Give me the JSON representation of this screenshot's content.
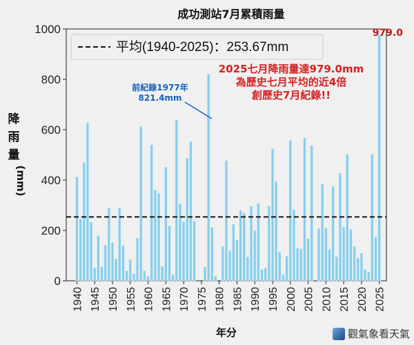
{
  "chart_data": {
    "type": "bar",
    "title": "成功測站7月累積雨量",
    "xlabel": "年分",
    "ylabel": "降雨量(mm)",
    "ylim": [
      0,
      1000
    ],
    "xlim": [
      1937,
      2027
    ],
    "yticks": [
      0,
      200,
      400,
      600,
      800,
      1000
    ],
    "xticks": [
      1940,
      1945,
      1950,
      1955,
      1960,
      1965,
      1970,
      1975,
      1980,
      1985,
      1990,
      1995,
      2000,
      2005,
      2010,
      2015,
      2020,
      2025
    ],
    "bar_color": "#87ceeb",
    "highlight_color": "#a8d8ef",
    "mean_value": 253.67,
    "legend": {
      "text": "平均(1940-2025)：253.67mm",
      "placement": "top-left"
    },
    "annotations": {
      "record_2025_label": "979.0",
      "old_record_line1": "前紀錄1977年",
      "old_record_line2": "821.4mm",
      "headline_line1": "2025七月降雨量達979.0mm",
      "headline_line2": "為歷史七月平均的近4倍",
      "headline_line3": "創歷史7月紀錄!!"
    },
    "x": [
      1940,
      1941,
      1942,
      1943,
      1944,
      1945,
      1946,
      1947,
      1948,
      1949,
      1950,
      1951,
      1952,
      1953,
      1954,
      1955,
      1956,
      1957,
      1958,
      1959,
      1960,
      1961,
      1962,
      1963,
      1964,
      1965,
      1966,
      1967,
      1968,
      1969,
      1970,
      1971,
      1972,
      1973,
      1974,
      1975,
      1976,
      1977,
      1978,
      1979,
      1980,
      1981,
      1982,
      1983,
      1984,
      1985,
      1986,
      1987,
      1988,
      1989,
      1990,
      1991,
      1992,
      1993,
      1994,
      1995,
      1996,
      1997,
      1998,
      1999,
      2000,
      2001,
      2002,
      2003,
      2004,
      2005,
      2006,
      2007,
      2008,
      2009,
      2010,
      2011,
      2012,
      2013,
      2014,
      2015,
      2016,
      2017,
      2018,
      2019,
      2020,
      2021,
      2022,
      2023,
      2024,
      2025
    ],
    "values": [
      413,
      247,
      470,
      627,
      233,
      52,
      180,
      55,
      142,
      290,
      152,
      88,
      290,
      140,
      40,
      85,
      28,
      170,
      613,
      40,
      18,
      540,
      360,
      348,
      58,
      452,
      218,
      25,
      640,
      307,
      235,
      488,
      553,
      238,
      0,
      0,
      55,
      821.4,
      213,
      18,
      0,
      137,
      478,
      120,
      225,
      163,
      280,
      270,
      95,
      297,
      200,
      308,
      45,
      52,
      297,
      525,
      395,
      115,
      25,
      98,
      558,
      282,
      130,
      127,
      568,
      168,
      537,
      0,
      208,
      384,
      210,
      125,
      375,
      97,
      428,
      213,
      502,
      205,
      137,
      90,
      110,
      45,
      35,
      503,
      175,
      979
    ]
  }
}
